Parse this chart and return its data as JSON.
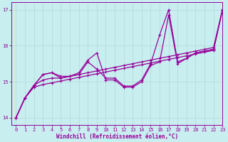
{
  "xlabel": "Windchill (Refroidissement éolien,°C)",
  "xlim": [
    -0.5,
    23
  ],
  "ylim": [
    13.8,
    17.2
  ],
  "yticks": [
    14,
    15,
    16,
    17
  ],
  "xticks": [
    0,
    1,
    2,
    3,
    4,
    5,
    6,
    7,
    8,
    9,
    10,
    11,
    12,
    13,
    14,
    15,
    16,
    17,
    18,
    19,
    20,
    21,
    22,
    23
  ],
  "bg_color": "#c8eef0",
  "line_color": "#990099",
  "grid_color": "#b8dfe0",
  "series_bottom_x": [
    0,
    1,
    2,
    3,
    4,
    5,
    6,
    7,
    8,
    9,
    10,
    11,
    12,
    13,
    14,
    15,
    16,
    17,
    18,
    19,
    20,
    21,
    22,
    23
  ],
  "series_bottom_y": [
    14.0,
    14.55,
    14.85,
    14.92,
    14.97,
    15.02,
    15.07,
    15.12,
    15.17,
    15.22,
    15.27,
    15.32,
    15.37,
    15.42,
    15.47,
    15.52,
    15.57,
    15.62,
    15.67,
    15.72,
    15.77,
    15.82,
    15.87,
    17.0
  ],
  "series_mid_x": [
    0,
    1,
    2,
    3,
    4,
    5,
    6,
    7,
    8,
    9,
    10,
    11,
    12,
    13,
    14,
    15,
    16,
    17,
    18,
    19,
    20,
    21,
    22,
    23
  ],
  "series_mid_y": [
    14.0,
    14.55,
    14.9,
    15.05,
    15.1,
    15.1,
    15.15,
    15.2,
    15.25,
    15.3,
    15.35,
    15.4,
    15.45,
    15.5,
    15.55,
    15.6,
    15.65,
    15.7,
    15.75,
    15.8,
    15.85,
    15.9,
    15.95,
    17.0
  ],
  "series_spiky1_x": [
    0,
    1,
    2,
    3,
    4,
    5,
    6,
    7,
    8,
    9,
    10,
    11,
    12,
    13,
    14,
    15,
    16,
    17,
    18,
    19,
    20,
    21,
    22,
    23
  ],
  "series_spiky1_y": [
    14.0,
    14.55,
    14.9,
    15.2,
    15.25,
    15.1,
    15.15,
    15.2,
    15.55,
    15.35,
    15.1,
    15.1,
    14.88,
    14.88,
    15.05,
    15.5,
    16.3,
    17.0,
    15.55,
    15.65,
    15.8,
    15.85,
    15.9,
    17.0
  ],
  "series_spiky2_x": [
    0,
    1,
    2,
    3,
    4,
    5,
    6,
    7,
    8,
    9,
    10,
    11,
    12,
    13,
    14,
    15,
    16,
    17,
    18,
    19,
    20,
    21,
    22,
    23
  ],
  "series_spiky2_y": [
    14.0,
    14.55,
    14.9,
    15.2,
    15.25,
    15.15,
    15.15,
    15.25,
    15.6,
    15.8,
    15.05,
    15.05,
    14.85,
    14.85,
    15.0,
    15.45,
    15.55,
    16.85,
    15.5,
    15.65,
    15.8,
    15.85,
    15.9,
    17.0
  ]
}
